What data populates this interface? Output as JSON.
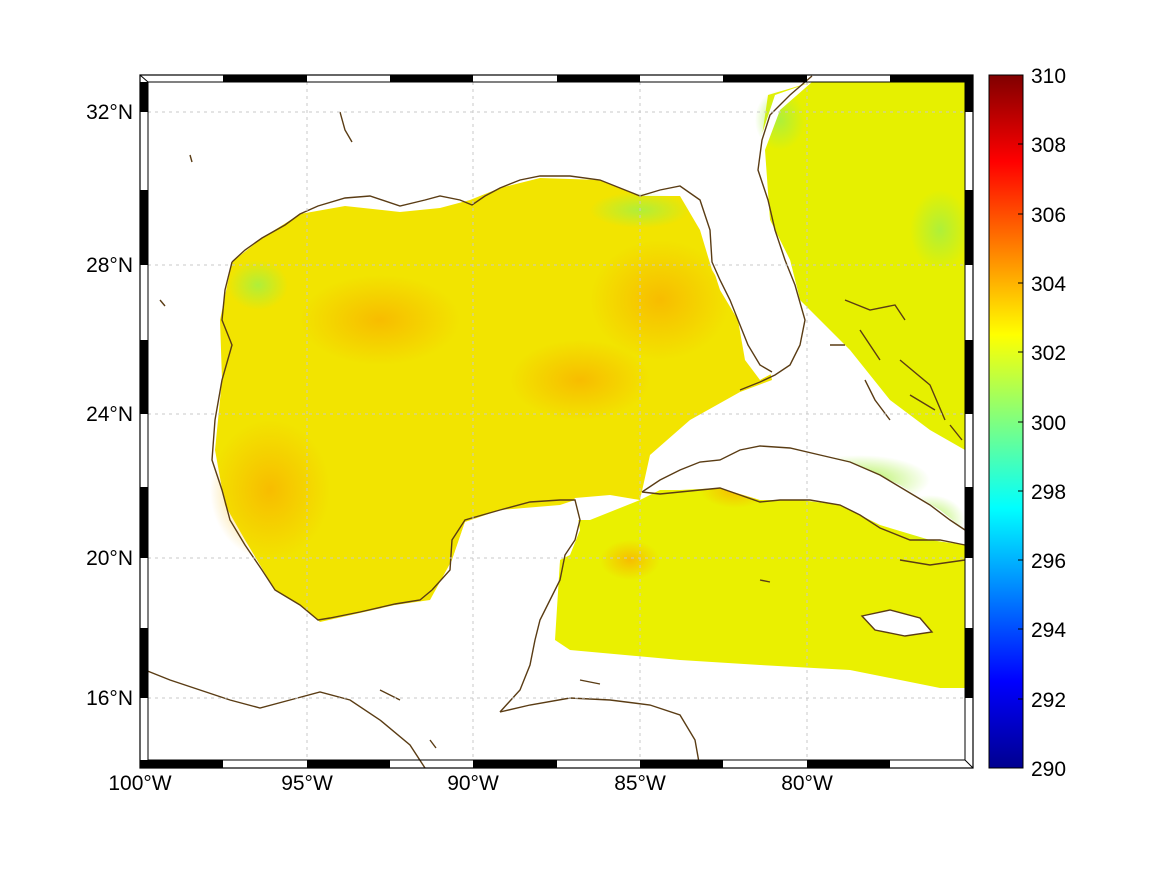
{
  "map": {
    "x_tick_labels": [
      "100°W",
      "95°W",
      "90°W",
      "85°W",
      "80°W"
    ],
    "y_tick_labels": [
      "32°N",
      "28°N",
      "24°N",
      "20°N",
      "16°N"
    ],
    "lon_range": [
      -100,
      -75
    ],
    "lat_range": [
      14.5,
      33
    ],
    "x_ticks": [
      -100,
      -95,
      -90,
      -85,
      -80
    ],
    "y_ticks": [
      32,
      28,
      24,
      20,
      16
    ],
    "grid": true,
    "coastline_color": "#5a3c14",
    "dominant_field_color": "#f2e600"
  },
  "colorbar": {
    "min": 290,
    "max": 310,
    "tick_labels": [
      "310",
      "308",
      "306",
      "304",
      "302",
      "300",
      "298",
      "296",
      "294",
      "292",
      "290"
    ],
    "colormap": "jet"
  }
}
